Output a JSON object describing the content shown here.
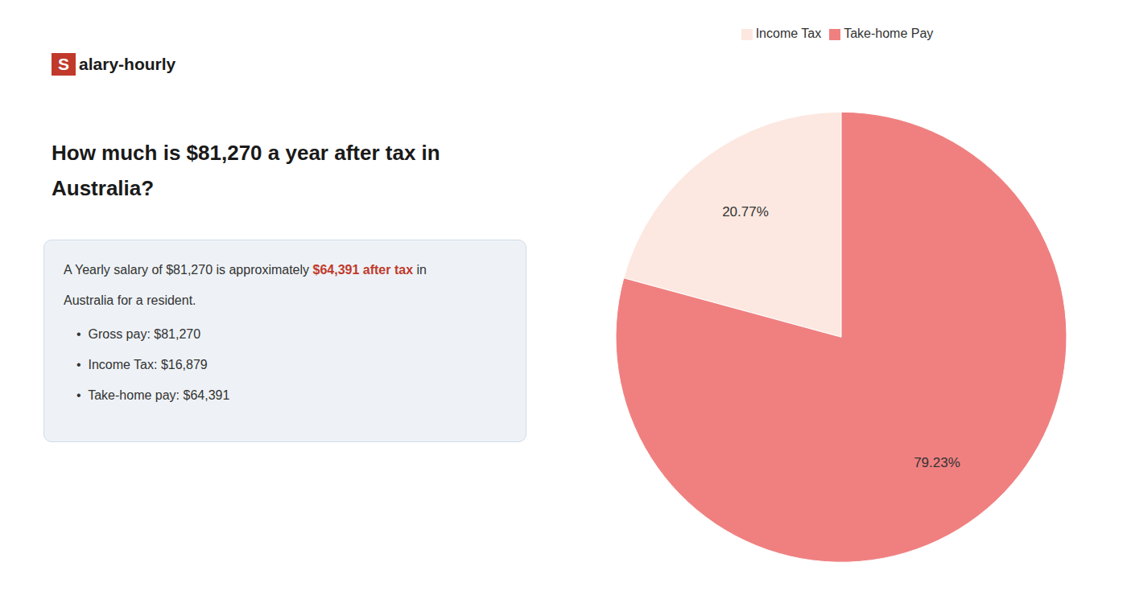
{
  "chart_data": {
    "type": "pie",
    "title": [
      "How much is $81,270 a year after tax in",
      "Australia?"
    ],
    "categories": [
      "Income Tax",
      "Take-home Pay"
    ],
    "values": [
      20.77,
      79.23
    ],
    "value_labels": [
      "20.77%",
      "79.23%"
    ],
    "colors": [
      "#fce8e0",
      "#f08080"
    ],
    "data_labels": true,
    "legend": "top",
    "annotations": [
      [
        {
          "text": "S",
          "color": "#c0392b"
        },
        {
          "text": "alary-hourly"
        }
      ],
      [
        {
          "text": "A Yearly salary of $81,270 is approximately "
        },
        {
          "text": "$64,391 after tax",
          "color": "#c0392b"
        },
        {
          "text": " in"
        }
      ],
      [
        {
          "text": "Australia for a resident."
        }
      ],
      [
        {
          "text": "•  Gross pay: $81,270"
        }
      ],
      [
        {
          "text": "•  Income Tax: $16,879"
        }
      ],
      [
        {
          "text": "•  Take-home pay: $64,391"
        }
      ]
    ]
  }
}
